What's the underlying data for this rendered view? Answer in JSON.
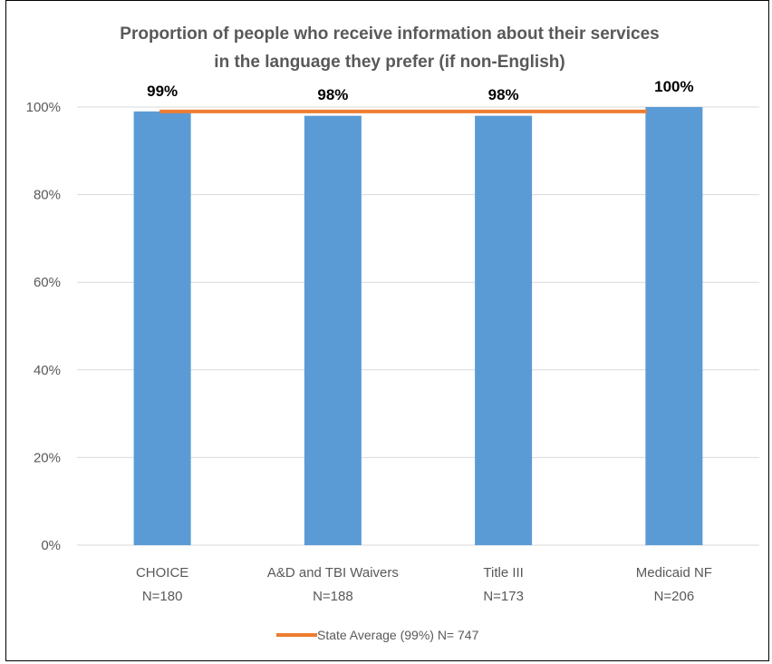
{
  "chart_data": {
    "type": "bar",
    "title_lines": [
      "Proportion of people who receive information about their services",
      "in the language they prefer (if non-English)"
    ],
    "categories": [
      "CHOICE",
      "A&D and TBI Waivers",
      "Title III",
      "Medicaid NF"
    ],
    "category_n": [
      "N=180",
      "N=188",
      "N=173",
      "N=206"
    ],
    "values": [
      99,
      98,
      98,
      100
    ],
    "data_labels": [
      "99%",
      "98%",
      "98%",
      "100%"
    ],
    "ylim": [
      0,
      100
    ],
    "y_ticks": [
      0,
      20,
      40,
      60,
      80,
      100
    ],
    "y_tick_labels": [
      "0%",
      "20%",
      "40%",
      "60%",
      "80%",
      "100%"
    ],
    "reference_line": {
      "name": "State Average (99%) N= 747",
      "value": 99
    },
    "grid": true,
    "legend_position": "bottom",
    "colors": {
      "bar": "#5b9bd5",
      "line": "#ed7d31",
      "grid": "#d9d9d9",
      "text": "#595959"
    }
  }
}
